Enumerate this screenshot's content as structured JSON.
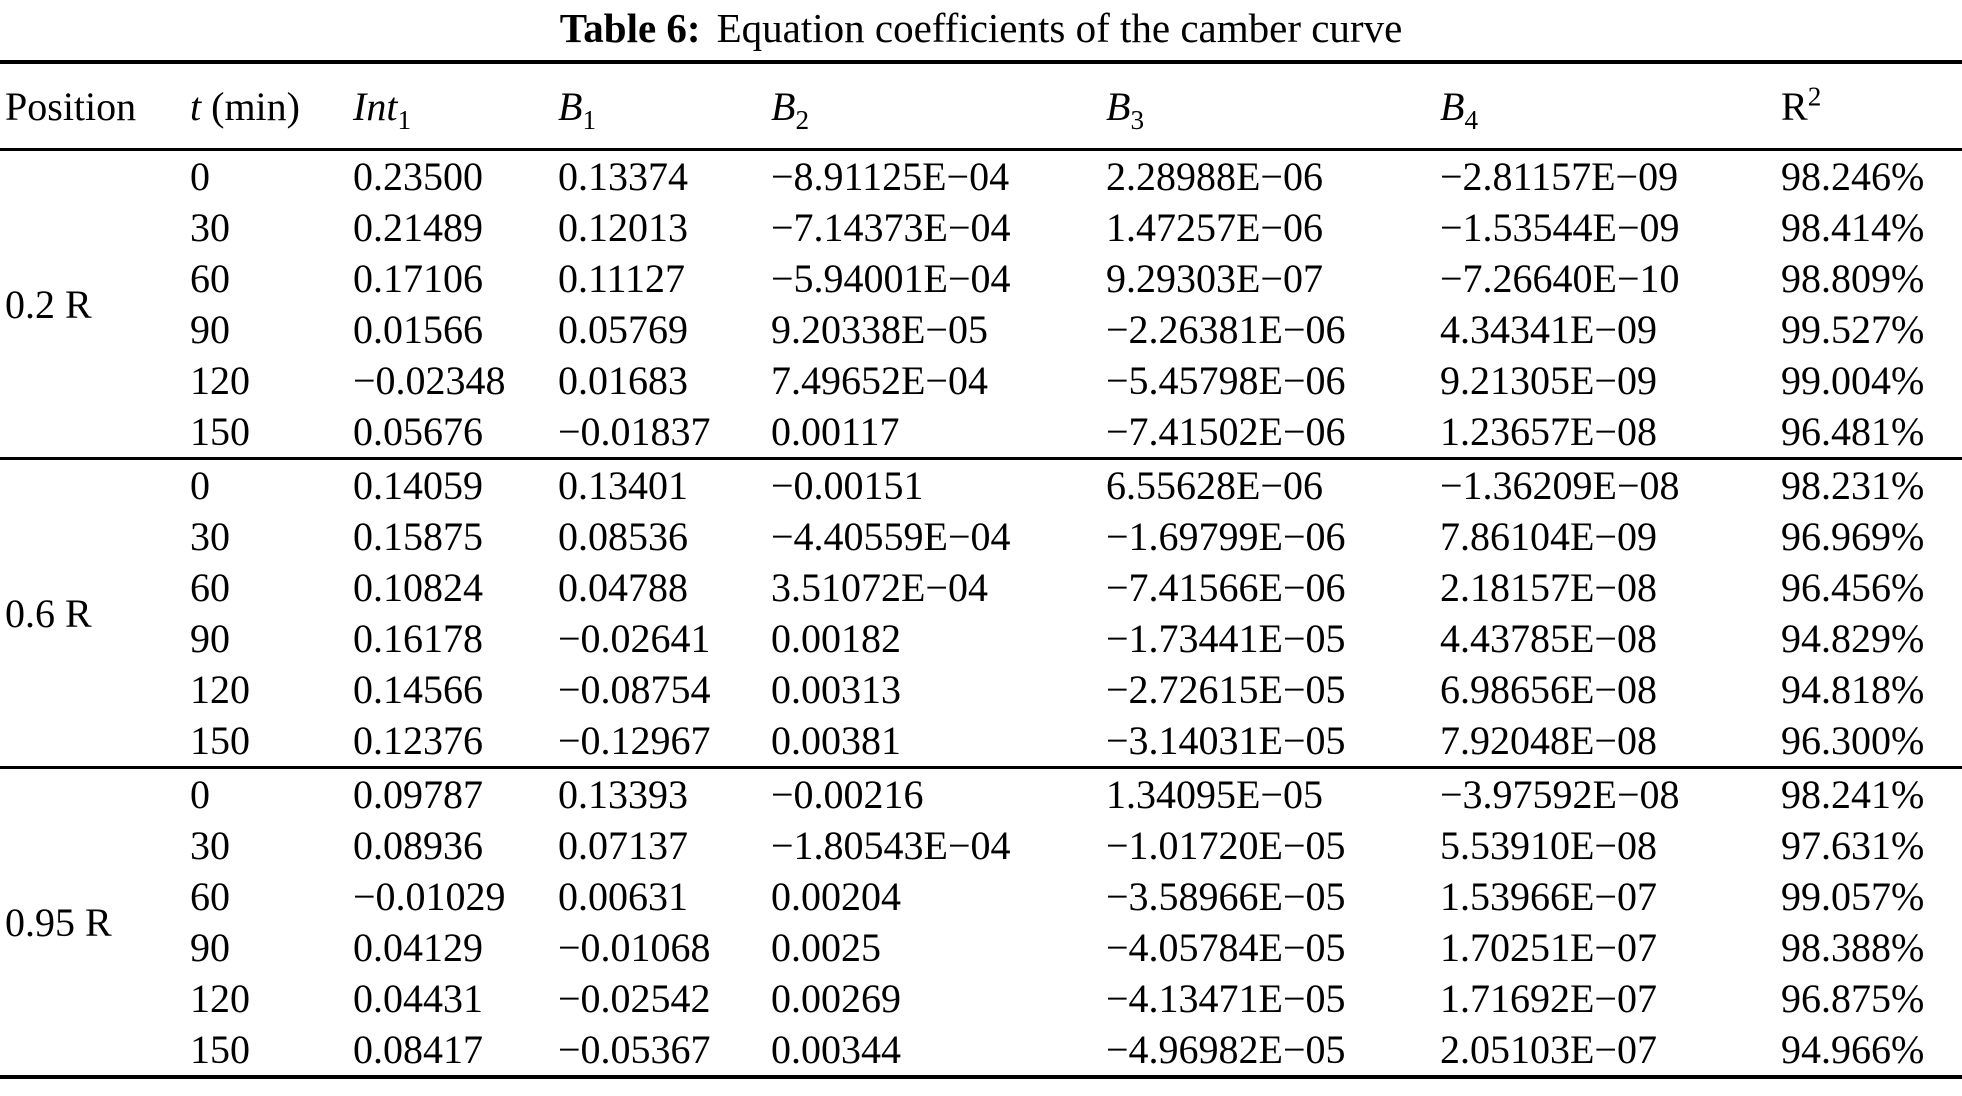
{
  "table": {
    "title_label": "Table 6:",
    "title_text": "Equation coefficients of the camber curve",
    "header": {
      "position": "Position",
      "t_symbol": "t",
      "t_unit": "(min)",
      "int_base": "Int",
      "int_sub": "1",
      "b_base": "B",
      "b1_sub": "1",
      "b2_sub": "2",
      "b3_sub": "3",
      "b4_sub": "4",
      "r_base": "R",
      "r_sup": "2"
    },
    "column_keys": [
      "t",
      "int1",
      "b1",
      "b2",
      "b3",
      "b4",
      "r2"
    ],
    "groups": [
      {
        "position": "0.2 R",
        "rows": [
          {
            "t": "0",
            "int1": "0.23500",
            "b1": "0.13374",
            "b2": "−8.91125E−04",
            "b3": "2.28988E−06",
            "b4": "−2.81157E−09",
            "r2": "98.246%"
          },
          {
            "t": "30",
            "int1": "0.21489",
            "b1": "0.12013",
            "b2": "−7.14373E−04",
            "b3": "1.47257E−06",
            "b4": "−1.53544E−09",
            "r2": "98.414%"
          },
          {
            "t": "60",
            "int1": "0.17106",
            "b1": "0.11127",
            "b2": "−5.94001E−04",
            "b3": "9.29303E−07",
            "b4": "−7.26640E−10",
            "r2": "98.809%"
          },
          {
            "t": "90",
            "int1": "0.01566",
            "b1": "0.05769",
            "b2": "9.20338E−05",
            "b3": "−2.26381E−06",
            "b4": "4.34341E−09",
            "r2": "99.527%"
          },
          {
            "t": "120",
            "int1": "−0.02348",
            "b1": "0.01683",
            "b2": "7.49652E−04",
            "b3": "−5.45798E−06",
            "b4": "9.21305E−09",
            "r2": "99.004%"
          },
          {
            "t": "150",
            "int1": "0.05676",
            "b1": "−0.01837",
            "b2": "0.00117",
            "b3": "−7.41502E−06",
            "b4": "1.23657E−08",
            "r2": "96.481%"
          }
        ]
      },
      {
        "position": "0.6 R",
        "rows": [
          {
            "t": "0",
            "int1": "0.14059",
            "b1": "0.13401",
            "b2": "−0.00151",
            "b3": "6.55628E−06",
            "b4": "−1.36209E−08",
            "r2": "98.231%"
          },
          {
            "t": "30",
            "int1": "0.15875",
            "b1": "0.08536",
            "b2": "−4.40559E−04",
            "b3": "−1.69799E−06",
            "b4": "7.86104E−09",
            "r2": "96.969%"
          },
          {
            "t": "60",
            "int1": "0.10824",
            "b1": "0.04788",
            "b2": "3.51072E−04",
            "b3": "−7.41566E−06",
            "b4": "2.18157E−08",
            "r2": "96.456%"
          },
          {
            "t": "90",
            "int1": "0.16178",
            "b1": "−0.02641",
            "b2": "0.00182",
            "b3": "−1.73441E−05",
            "b4": "4.43785E−08",
            "r2": "94.829%"
          },
          {
            "t": "120",
            "int1": "0.14566",
            "b1": "−0.08754",
            "b2": "0.00313",
            "b3": "−2.72615E−05",
            "b4": "6.98656E−08",
            "r2": "94.818%"
          },
          {
            "t": "150",
            "int1": "0.12376",
            "b1": "−0.12967",
            "b2": "0.00381",
            "b3": "−3.14031E−05",
            "b4": "7.92048E−08",
            "r2": "96.300%"
          }
        ]
      },
      {
        "position": "0.95 R",
        "rows": [
          {
            "t": "0",
            "int1": "0.09787",
            "b1": "0.13393",
            "b2": "−0.00216",
            "b3": "1.34095E−05",
            "b4": "−3.97592E−08",
            "r2": "98.241%"
          },
          {
            "t": "30",
            "int1": "0.08936",
            "b1": "0.07137",
            "b2": "−1.80543E−04",
            "b3": "−1.01720E−05",
            "b4": "5.53910E−08",
            "r2": "97.631%"
          },
          {
            "t": "60",
            "int1": "−0.01029",
            "b1": "0.00631",
            "b2": "0.00204",
            "b3": "−3.58966E−05",
            "b4": "1.53966E−07",
            "r2": "99.057%"
          },
          {
            "t": "90",
            "int1": "0.04129",
            "b1": "−0.01068",
            "b2": "0.0025",
            "b3": "−4.05784E−05",
            "b4": "1.70251E−07",
            "r2": "98.388%"
          },
          {
            "t": "120",
            "int1": "0.04431",
            "b1": "−0.02542",
            "b2": "0.00269",
            "b3": "−4.13471E−05",
            "b4": "1.71692E−07",
            "r2": "96.875%"
          },
          {
            "t": "150",
            "int1": "0.08417",
            "b1": "−0.05367",
            "b2": "0.00344",
            "b3": "−4.96982E−05",
            "b4": "2.05103E−07",
            "r2": "94.966%"
          }
        ]
      }
    ]
  }
}
